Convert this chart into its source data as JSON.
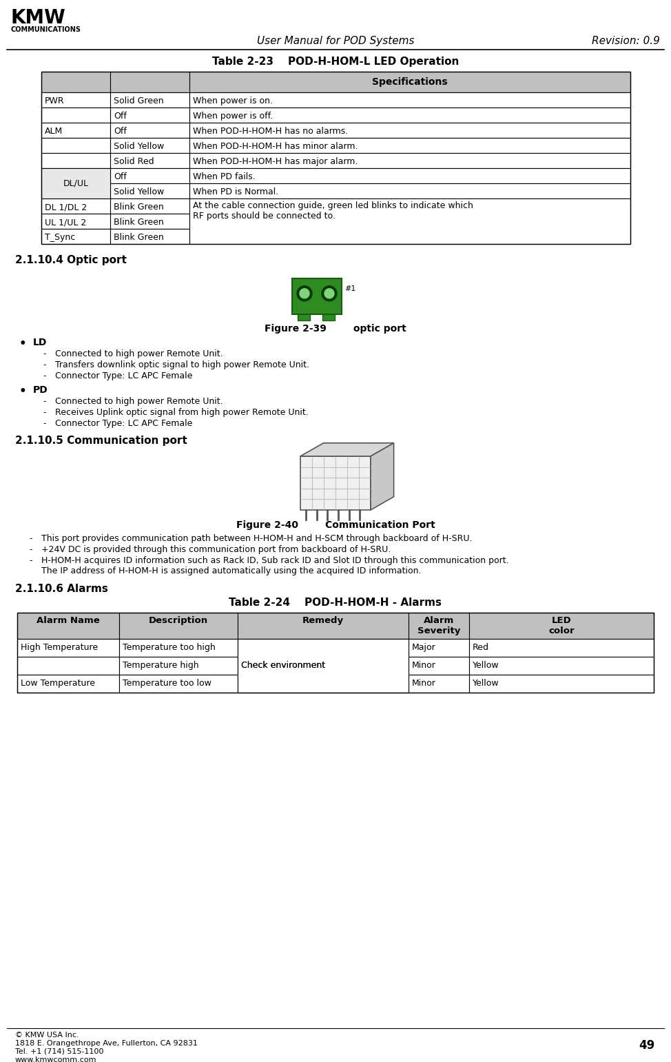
{
  "page_title": "User Manual for POD Systems",
  "revision": "Revision: 0.9",
  "page_number": "49",
  "table1_title": "Table 2-23    POD-H-HOM-L LED Operation",
  "table1_rows": [
    [
      "PWR",
      "Solid Green",
      "When power is on."
    ],
    [
      "",
      "Off",
      "When power is off."
    ],
    [
      "ALM",
      "Off",
      "When POD-H-HOM-H has no alarms."
    ],
    [
      "",
      "Solid Yellow",
      "When POD-H-HOM-H has minor alarm."
    ],
    [
      "",
      "Solid Red",
      "When POD-H-HOM-H has major alarm."
    ],
    [
      "DL/UL",
      "Off",
      "When PD fails."
    ],
    [
      "",
      "Solid Yellow",
      "When PD is Normal."
    ],
    [
      "DL 1/DL 2",
      "Blink Green",
      "At the cable connection guide, green led blinks to indicate which\nRF ports should be connected to."
    ],
    [
      "UL 1/UL 2",
      "Blink Green",
      ""
    ],
    [
      "T_Sync",
      "Blink Green",
      ""
    ]
  ],
  "section_optic": "2.1.10.4 Optic port",
  "fig39_caption": "Figure 2-39        optic port",
  "ld_title": "LD",
  "ld_items": [
    "Connected to high power Remote Unit.",
    "Transfers downlink optic signal to high power Remote Unit.",
    "Connector Type: LC APC Female"
  ],
  "pd_title": "PD",
  "pd_items": [
    "Connected to high power Remote Unit.",
    "Receives Uplink optic signal from high power Remote Unit.",
    "Connector Type: LC APC Female"
  ],
  "section_comm": "2.1.10.5 Communication port",
  "fig40_caption": "Figure 2-40        Communication Port",
  "comm_items": [
    "This port provides communication path between H-HOM-H and H-SCM through backboard of H-SRU.",
    "+24V DC is provided through this communication port from backboard of H-SRU.",
    "H-HOM-H acquires ID information such as Rack ID, Sub rack ID and Slot ID through this communication port.\nThe IP address of H-HOM-H is assigned automatically using the acquired ID information."
  ],
  "section_alarms": "2.1.10.6 Alarms",
  "table2_title": "Table 2-24    POD-H-HOM-H - Alarms",
  "table2_header": [
    "Alarm Name",
    "Description",
    "Remedy",
    "Alarm\nSeverity",
    "LED\ncolor"
  ],
  "table2_rows": [
    [
      "High Temperature",
      "Temperature too high",
      "",
      "Major",
      "Red"
    ],
    [
      "",
      "Temperature high",
      "Check environment",
      "Minor",
      "Yellow"
    ],
    [
      "Low Temperature",
      "Temperature too low",
      "",
      "Minor",
      "Yellow"
    ]
  ],
  "footer_line1": "© KMW USA Inc.",
  "footer_line2": "1818 E. Orangethrope Ave, Fullerton, CA 92831",
  "footer_line3": "Tel. +1 (714) 515-1100",
  "footer_line4": "www.kmwcomm.com",
  "bg_color": "#ffffff",
  "table_header_bg": "#c0c0c0",
  "dlul_cell_bg": "#e8e8e8"
}
